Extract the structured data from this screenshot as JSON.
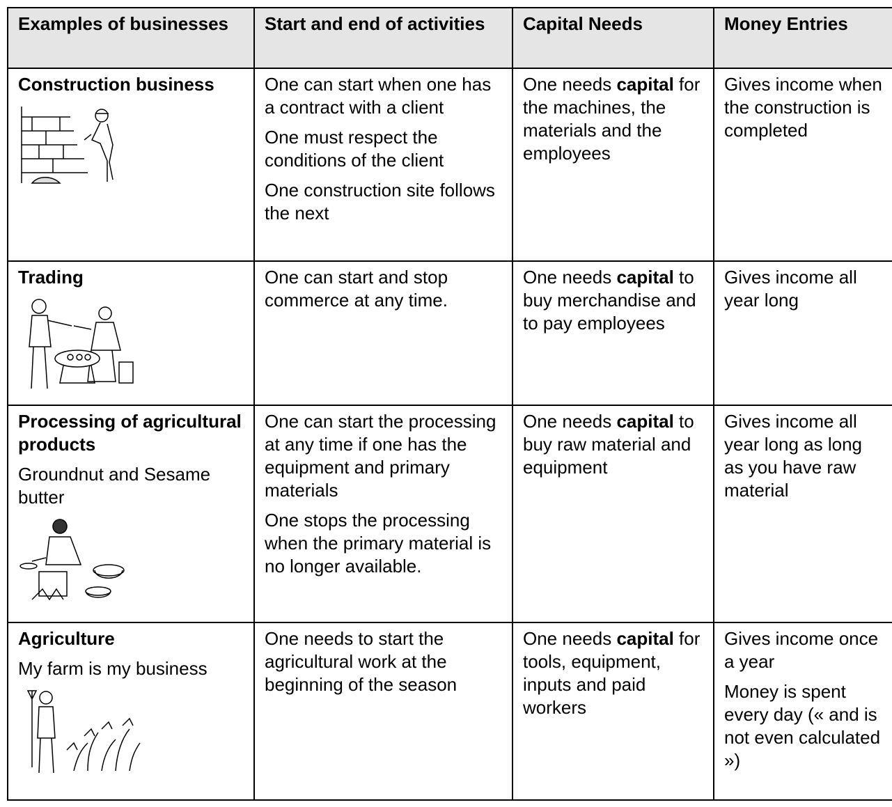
{
  "table": {
    "header": [
      "Examples of businesses",
      "Start and end of activities",
      "Capital Needs",
      "Money Entries"
    ],
    "rows": [
      {
        "business": {
          "name": "Construction business"
        },
        "start_end": [
          "One can start when one has a contract with a client",
          "One must respect the conditions of the client",
          "One construction site follows the next"
        ],
        "capital": [
          "One needs ",
          {
            "text": "capital",
            "bold": true
          },
          " for the machines, the materials and the employees"
        ],
        "money": [
          "Gives income when the construction is completed"
        ]
      },
      {
        "business": {
          "name": "Trading"
        },
        "start_end": [
          "One can start and stop commerce at any time."
        ],
        "capital": [
          "One needs ",
          {
            "text": "capital",
            "bold": true
          },
          " to buy merchandise and to pay employees"
        ],
        "money": [
          "Gives income all year long"
        ]
      },
      {
        "business": {
          "name": "Processing of agricultural products",
          "description": "Groundnut and Sesame butter"
        },
        "start_end": [
          "One can start the processing at any time if one has the equipment and primary materials",
          "One stops the processing when the primary material is no longer available."
        ],
        "capital": [
          "One needs ",
          {
            "text": "capital",
            "bold": true
          },
          " to buy raw material and equipment"
        ],
        "money": [
          "Gives income all year long as long as you have raw material"
        ]
      },
      {
        "business": {
          "name": "Agriculture",
          "description": "My farm is my business"
        },
        "start_end": [
          "One needs to start the agricultural work at the beginning of the season"
        ],
        "capital": [
          "One needs ",
          {
            "text": "capital",
            "bold": true
          },
          " for tools, equipment, inputs and paid workers"
        ],
        "money": [
          "Gives income once a year",
          "Money is spent every day (« and is not even calculated »)"
        ]
      }
    ]
  }
}
